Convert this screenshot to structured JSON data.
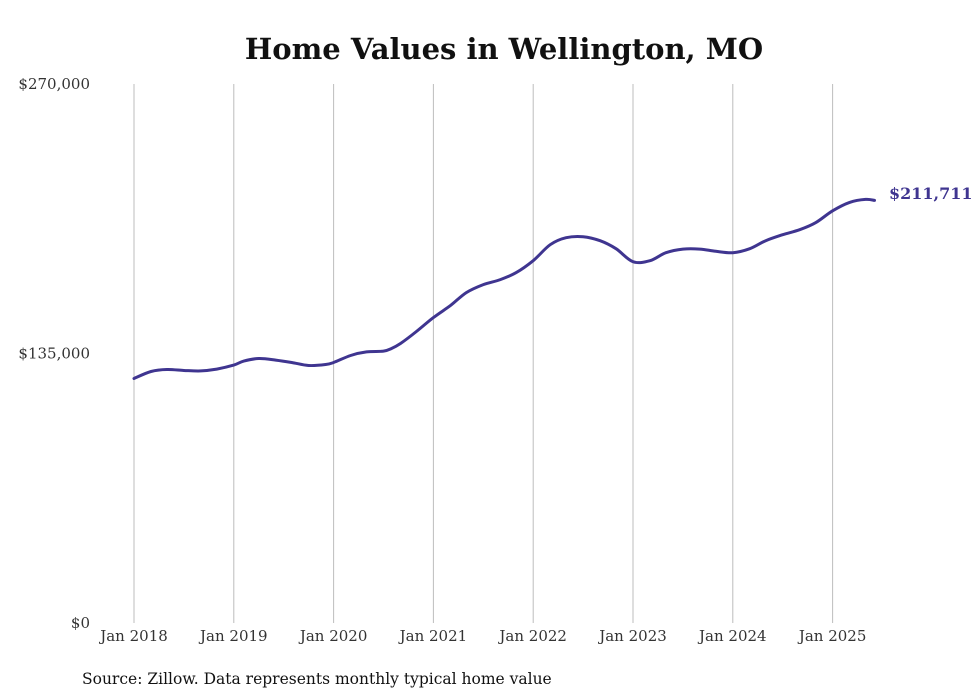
{
  "chart_data": {
    "type": "line",
    "title": "Home Values in Wellington, MO",
    "xlabel": "",
    "ylabel": "",
    "ylim": [
      0,
      270000
    ],
    "y_ticks": [
      {
        "value": 0,
        "label": "$0"
      },
      {
        "value": 135000,
        "label": "$135,000"
      },
      {
        "value": 270000,
        "label": "$270,000"
      }
    ],
    "x_ticks": [
      {
        "value": 2018.0,
        "label": "Jan 2018"
      },
      {
        "value": 2019.0,
        "label": "Jan 2019"
      },
      {
        "value": 2020.0,
        "label": "Jan 2020"
      },
      {
        "value": 2021.0,
        "label": "Jan 2021"
      },
      {
        "value": 2022.0,
        "label": "Jan 2022"
      },
      {
        "value": 2023.0,
        "label": "Jan 2023"
      },
      {
        "value": 2024.0,
        "label": "Jan 2024"
      },
      {
        "value": 2025.0,
        "label": "Jan 2025"
      }
    ],
    "grid": {
      "vertical": true,
      "horizontal": false
    },
    "series": [
      {
        "color": "#3f3590",
        "points": [
          [
            2018.0,
            122500
          ],
          [
            2018.17,
            126000
          ],
          [
            2018.33,
            127000
          ],
          [
            2018.5,
            126500
          ],
          [
            2018.67,
            126300
          ],
          [
            2018.83,
            127200
          ],
          [
            2019.0,
            129200
          ],
          [
            2019.1,
            131200
          ],
          [
            2019.25,
            132500
          ],
          [
            2019.42,
            131700
          ],
          [
            2019.58,
            130500
          ],
          [
            2019.75,
            129000
          ],
          [
            2019.92,
            129500
          ],
          [
            2020.0,
            130500
          ],
          [
            2020.17,
            134000
          ],
          [
            2020.33,
            135800
          ],
          [
            2020.5,
            136200
          ],
          [
            2020.58,
            137500
          ],
          [
            2020.67,
            140000
          ],
          [
            2020.83,
            146000
          ],
          [
            2021.0,
            153000
          ],
          [
            2021.17,
            159000
          ],
          [
            2021.33,
            165500
          ],
          [
            2021.5,
            169500
          ],
          [
            2021.67,
            172000
          ],
          [
            2021.83,
            175500
          ],
          [
            2022.0,
            181500
          ],
          [
            2022.17,
            189500
          ],
          [
            2022.33,
            193000
          ],
          [
            2022.5,
            193500
          ],
          [
            2022.67,
            191500
          ],
          [
            2022.83,
            187500
          ],
          [
            2023.0,
            181000
          ],
          [
            2023.17,
            181500
          ],
          [
            2023.33,
            185500
          ],
          [
            2023.5,
            187300
          ],
          [
            2023.67,
            187300
          ],
          [
            2023.83,
            186200
          ],
          [
            2024.0,
            185500
          ],
          [
            2024.17,
            187500
          ],
          [
            2024.33,
            191500
          ],
          [
            2024.5,
            194500
          ],
          [
            2024.67,
            197000
          ],
          [
            2024.83,
            200500
          ],
          [
            2025.0,
            206500
          ],
          [
            2025.17,
            210700
          ],
          [
            2025.33,
            212200
          ],
          [
            2025.42,
            211711
          ]
        ]
      }
    ],
    "end_label": "$211,711",
    "source_note": "Source: Zillow. Data represents monthly typical home value"
  }
}
